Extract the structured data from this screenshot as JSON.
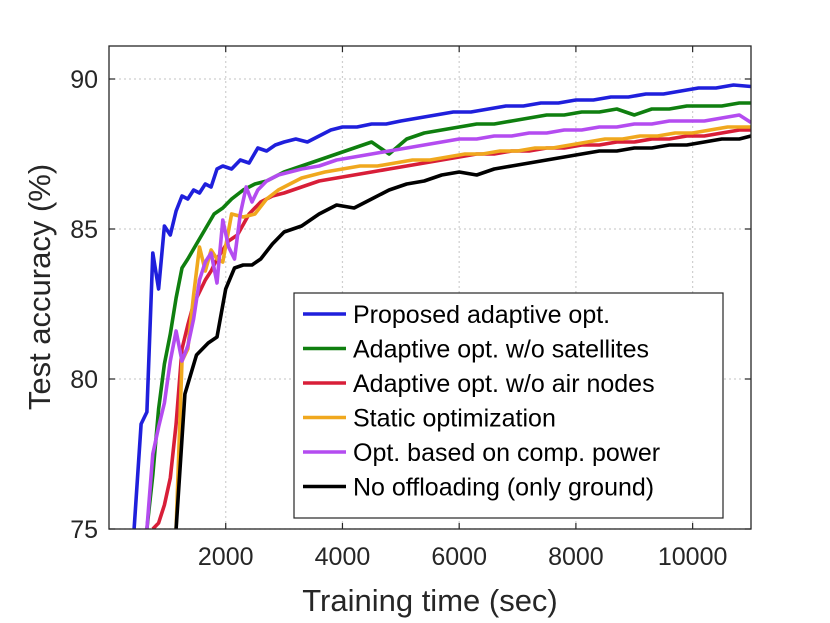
{
  "chart_data": {
    "type": "line",
    "title": "",
    "xlabel": "Training time (sec)",
    "ylabel": "Test accuracy (%)",
    "xlim": [
      0,
      11000
    ],
    "ylim": [
      75,
      91.1
    ],
    "xticks": [
      2000,
      4000,
      6000,
      8000,
      10000
    ],
    "xtick_labels": [
      "2000",
      "4000",
      "6000",
      "8000",
      "10000"
    ],
    "yticks": [
      75,
      80,
      85,
      90
    ],
    "ytick_labels": [
      "75",
      "80",
      "85",
      "90"
    ],
    "grid": true,
    "legend_position": "bottom-right",
    "series": [
      {
        "name": "Proposed adaptive opt.",
        "color": "#1f1fdc",
        "x": [
          430,
          550,
          650,
          750,
          850,
          950,
          1050,
          1150,
          1250,
          1350,
          1450,
          1550,
          1650,
          1750,
          1850,
          1950,
          2100,
          2250,
          2400,
          2550,
          2700,
          2850,
          3000,
          3200,
          3400,
          3600,
          3800,
          4000,
          4250,
          4500,
          4750,
          5000,
          5300,
          5600,
          5900,
          6200,
          6500,
          6800,
          7100,
          7400,
          7700,
          8000,
          8300,
          8600,
          8900,
          9200,
          9500,
          9800,
          10100,
          10400,
          10700,
          11000
        ],
        "y": [
          75.0,
          78.5,
          78.9,
          84.2,
          83.0,
          85.1,
          84.8,
          85.6,
          86.1,
          86.0,
          86.3,
          86.2,
          86.5,
          86.4,
          87.0,
          87.1,
          87.0,
          87.3,
          87.2,
          87.7,
          87.6,
          87.8,
          87.9,
          88.0,
          87.9,
          88.1,
          88.3,
          88.4,
          88.4,
          88.5,
          88.5,
          88.6,
          88.7,
          88.8,
          88.9,
          88.9,
          89.0,
          89.1,
          89.1,
          89.2,
          89.2,
          89.3,
          89.3,
          89.4,
          89.4,
          89.5,
          89.5,
          89.6,
          89.7,
          89.7,
          89.8,
          89.75
        ]
      },
      {
        "name": "Adaptive opt. w/o satellites",
        "color": "#0f7f0f",
        "x": [
          650,
          750,
          850,
          950,
          1050,
          1150,
          1250,
          1350,
          1500,
          1650,
          1800,
          1950,
          2100,
          2300,
          2500,
          2700,
          3000,
          3300,
          3600,
          3900,
          4200,
          4500,
          4800,
          5100,
          5400,
          5700,
          6000,
          6300,
          6600,
          6900,
          7200,
          7500,
          7800,
          8100,
          8400,
          8700,
          9000,
          9300,
          9600,
          9900,
          10200,
          10500,
          10800,
          11000
        ],
        "y": [
          75.0,
          76.8,
          79.0,
          80.5,
          81.5,
          82.7,
          83.7,
          84.0,
          84.5,
          85.0,
          85.5,
          85.7,
          86.0,
          86.3,
          86.5,
          86.6,
          86.9,
          87.1,
          87.3,
          87.5,
          87.7,
          87.9,
          87.5,
          88.0,
          88.2,
          88.3,
          88.4,
          88.5,
          88.5,
          88.6,
          88.7,
          88.8,
          88.8,
          88.9,
          88.9,
          89.0,
          88.8,
          89.0,
          89.0,
          89.1,
          89.1,
          89.1,
          89.2,
          89.2
        ]
      },
      {
        "name": "Adaptive opt. w/o air nodes",
        "color": "#d81e38",
        "x": [
          750,
          850,
          950,
          1050,
          1150,
          1250,
          1350,
          1450,
          1550,
          1650,
          1750,
          1850,
          1950,
          2050,
          2200,
          2400,
          2600,
          2800,
          3000,
          3300,
          3600,
          3900,
          4200,
          4500,
          4800,
          5100,
          5400,
          5700,
          6000,
          6300,
          6600,
          6900,
          7200,
          7500,
          7800,
          8100,
          8400,
          8700,
          9000,
          9300,
          9600,
          9900,
          10200,
          10500,
          10800,
          11000
        ],
        "y": [
          75.0,
          75.2,
          75.8,
          76.7,
          78.5,
          81.0,
          81.8,
          82.5,
          82.9,
          83.3,
          83.6,
          84.0,
          84.3,
          84.6,
          84.8,
          85.5,
          85.9,
          86.1,
          86.2,
          86.4,
          86.6,
          86.7,
          86.8,
          86.9,
          87.0,
          87.1,
          87.2,
          87.3,
          87.4,
          87.5,
          87.5,
          87.6,
          87.6,
          87.7,
          87.7,
          87.8,
          87.8,
          87.9,
          87.9,
          88.0,
          88.0,
          88.1,
          88.1,
          88.2,
          88.3,
          88.3
        ]
      },
      {
        "name": "Static optimization",
        "color": "#f0a81e",
        "x": [
          1150,
          1250,
          1350,
          1450,
          1550,
          1650,
          1750,
          1850,
          1950,
          2100,
          2300,
          2500,
          2700,
          2900,
          3100,
          3300,
          3500,
          3700,
          4000,
          4300,
          4600,
          4900,
          5200,
          5500,
          5800,
          6100,
          6400,
          6700,
          7000,
          7300,
          7600,
          7900,
          8200,
          8500,
          8800,
          9100,
          9400,
          9700,
          10000,
          10300,
          10600,
          11000
        ],
        "y": [
          75.0,
          80.6,
          81.0,
          82.8,
          84.4,
          83.6,
          84.3,
          84.0,
          83.9,
          85.5,
          85.4,
          85.5,
          86.0,
          86.3,
          86.5,
          86.7,
          86.8,
          86.9,
          87.0,
          87.1,
          87.1,
          87.2,
          87.3,
          87.3,
          87.4,
          87.5,
          87.5,
          87.6,
          87.6,
          87.7,
          87.7,
          87.8,
          87.9,
          88.0,
          88.0,
          88.1,
          88.1,
          88.2,
          88.2,
          88.3,
          88.4,
          88.4
        ]
      },
      {
        "name": "Opt. based on comp. power",
        "color": "#b44cf0",
        "x": [
          650,
          750,
          850,
          950,
          1050,
          1150,
          1250,
          1350,
          1450,
          1550,
          1650,
          1750,
          1850,
          1950,
          2050,
          2150,
          2250,
          2350,
          2450,
          2550,
          2700,
          2900,
          3100,
          3300,
          3600,
          3900,
          4200,
          4500,
          4800,
          5100,
          5400,
          5700,
          6000,
          6300,
          6600,
          6900,
          7200,
          7500,
          7800,
          8100,
          8400,
          8700,
          9000,
          9300,
          9600,
          9900,
          10200,
          10500,
          10800,
          11000
        ],
        "y": [
          75.0,
          77.5,
          78.4,
          79.2,
          80.6,
          81.6,
          80.6,
          81.1,
          82.0,
          83.3,
          83.9,
          84.2,
          83.2,
          85.3,
          84.4,
          84.0,
          85.5,
          86.4,
          85.9,
          86.3,
          86.6,
          86.8,
          86.9,
          87.0,
          87.1,
          87.3,
          87.4,
          87.5,
          87.6,
          87.7,
          87.8,
          87.9,
          88.0,
          88.0,
          88.1,
          88.1,
          88.2,
          88.2,
          88.3,
          88.3,
          88.4,
          88.4,
          88.5,
          88.5,
          88.6,
          88.6,
          88.6,
          88.7,
          88.8,
          88.55
        ]
      },
      {
        "name": "No offloading (only ground)",
        "color": "#000000",
        "x": [
          1150,
          1300,
          1500,
          1700,
          1850,
          2000,
          2150,
          2300,
          2450,
          2600,
          2800,
          3000,
          3300,
          3600,
          3900,
          4200,
          4500,
          4800,
          5100,
          5400,
          5700,
          6000,
          6300,
          6600,
          6900,
          7200,
          7500,
          7800,
          8100,
          8400,
          8700,
          9000,
          9300,
          9600,
          9900,
          10200,
          10500,
          10800,
          11000
        ],
        "y": [
          75.0,
          79.5,
          80.8,
          81.2,
          81.4,
          83.0,
          83.7,
          83.8,
          83.8,
          84.0,
          84.5,
          84.9,
          85.1,
          85.5,
          85.8,
          85.7,
          86.0,
          86.3,
          86.5,
          86.6,
          86.8,
          86.9,
          86.8,
          87.0,
          87.1,
          87.2,
          87.3,
          87.4,
          87.5,
          87.6,
          87.6,
          87.7,
          87.7,
          87.8,
          87.8,
          87.9,
          88.0,
          88.0,
          88.1
        ]
      }
    ]
  }
}
